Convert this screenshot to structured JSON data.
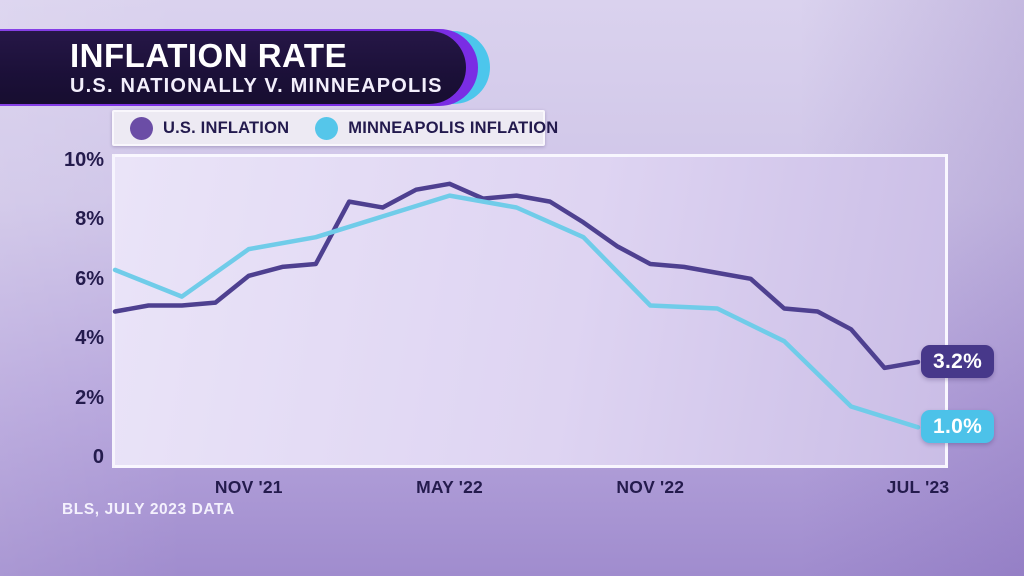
{
  "header": {
    "title": "INFLATION RATE",
    "subtitle": "U.S. NATIONALLY V. MINNEAPOLIS"
  },
  "footnote": "BLS, JULY 2023 DATA",
  "colors": {
    "header_bg": "#1b1038",
    "accent_ring_purple": "#7a2de4",
    "accent_ring_cyan": "#4cc6ec",
    "legend_bg": "#edeaf3",
    "axis_label": "#241b4d",
    "page_bg_top": "#dad2ee",
    "page_bg_bottom": "#a08cce"
  },
  "chart_data": {
    "type": "line",
    "title": "INFLATION RATE",
    "subtitle": "U.S. NATIONALLY V. MINNEAPOLIS",
    "source": "BLS, JULY 2023 DATA",
    "grid": false,
    "legend_position": "top-left",
    "ylim": [
      0,
      10
    ],
    "y_axis_ticks": [
      {
        "label": "10%",
        "value": 10
      },
      {
        "label": "8%",
        "value": 8
      },
      {
        "label": "6%",
        "value": 6
      },
      {
        "label": "4%",
        "value": 4
      },
      {
        "label": "2%",
        "value": 2
      },
      {
        "label": "0",
        "value": 0
      }
    ],
    "x_months": [
      "JUL '21",
      "AUG '21",
      "SEP '21",
      "OCT '21",
      "NOV '21",
      "DEC '21",
      "JAN '22",
      "FEB '22",
      "MAR '22",
      "APR '22",
      "MAY '22",
      "JUN '22",
      "JUL '22",
      "AUG '22",
      "SEP '22",
      "OCT '22",
      "NOV '22",
      "DEC '22",
      "JAN '23",
      "FEB '23",
      "MAR '23",
      "APR '23",
      "MAY '23",
      "JUN '23",
      "JUL '23"
    ],
    "x_axis_ticks": [
      {
        "label": "NOV '21",
        "month_index": 4
      },
      {
        "label": "MAY '22",
        "month_index": 10
      },
      {
        "label": "NOV '22",
        "month_index": 16
      },
      {
        "label": "JUL '23",
        "month_index": 24
      }
    ],
    "series": [
      {
        "name": "U.S. INFLATION",
        "color": "#4e4090",
        "dot_color": "#6b4da6",
        "values": [
          4.9,
          5.1,
          5.1,
          5.2,
          6.1,
          6.4,
          6.5,
          8.6,
          8.4,
          9.0,
          9.2,
          8.7,
          8.8,
          8.6,
          7.9,
          7.1,
          6.5,
          6.4,
          6.2,
          6.0,
          5.0,
          4.9,
          4.3,
          3.0,
          3.2
        ],
        "end_label": {
          "text": "3.2%",
          "bg": "#47388a"
        }
      },
      {
        "name": "MINNEAPOLIS INFLATION",
        "color": "#70cce9",
        "dot_color": "#55c6ea",
        "indices": [
          0,
          2,
          4,
          6,
          8,
          10,
          12,
          14,
          16,
          18,
          20,
          22,
          24
        ],
        "values": [
          6.3,
          5.4,
          7.0,
          7.4,
          8.1,
          8.8,
          8.4,
          7.4,
          5.1,
          5.0,
          3.9,
          1.7,
          1.0
        ],
        "end_label": {
          "text": "1.0%",
          "bg": "#4cc2e9"
        }
      }
    ]
  }
}
